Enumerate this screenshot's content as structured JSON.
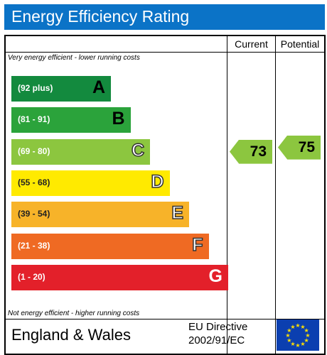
{
  "title": "Energy Efficiency Rating",
  "headers": {
    "current": "Current",
    "potential": "Potential"
  },
  "top_caption": "Very energy efficient - lower running costs",
  "bottom_caption": "Not energy efficient - higher running costs",
  "footer": {
    "region": "England & Wales",
    "directive_line1": "EU Directive",
    "directive_line2": "2002/91/EC"
  },
  "colors": {
    "title_bg": "#0b73c7",
    "A": "#138a3e",
    "B": "#2ba33b",
    "C": "#8cc63f",
    "D": "#ffea00",
    "E": "#f7b329",
    "F": "#ef6a23",
    "G": "#e3202a",
    "arrow": "#8cc63f",
    "flag": "#0b3fb0",
    "stars": "#ffe000"
  },
  "icons": {
    "eu_flag": "eu-flag-icon"
  },
  "chart_data": {
    "type": "bar",
    "bands": [
      {
        "letter": "A",
        "range": "(92 plus)"
      },
      {
        "letter": "B",
        "range": "(81 - 91)"
      },
      {
        "letter": "C",
        "range": "(69 - 80)"
      },
      {
        "letter": "D",
        "range": "(55 - 68)"
      },
      {
        "letter": "E",
        "range": "(39 - 54)"
      },
      {
        "letter": "F",
        "range": "(21 - 38)"
      },
      {
        "letter": "G",
        "range": "(1 - 20)"
      }
    ],
    "current": {
      "value": 73,
      "band": "C"
    },
    "potential": {
      "value": 75,
      "band": "C"
    }
  }
}
